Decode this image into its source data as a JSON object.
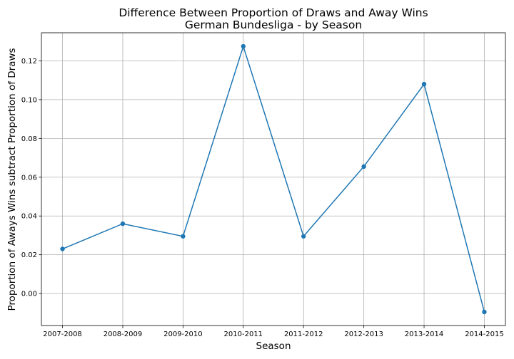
{
  "chart_data": {
    "type": "line",
    "title": "Difference Between Proportion of Draws and Away Wins",
    "subtitle": "German Bundesliga - by Season",
    "xlabel": "Season",
    "ylabel": "Proportion of Aways Wins subtract Proportion of Draws",
    "categories": [
      "2007-2008",
      "2008-2009",
      "2009-2010",
      "2010-2011",
      "2011-2012",
      "2012-2013",
      "2013-2014",
      "2014-2015"
    ],
    "series": [
      {
        "values": [
          0.023,
          0.036,
          0.0295,
          0.1275,
          0.0295,
          0.0655,
          0.108,
          -0.0095
        ],
        "color": "#1f77b4"
      }
    ],
    "yticks": [
      0.0,
      0.02,
      0.04,
      0.06,
      0.08,
      0.1,
      0.12
    ],
    "ytick_labels": [
      "0.00",
      "0.02",
      "0.04",
      "0.06",
      "0.08",
      "0.10",
      "0.12"
    ],
    "ylim": [
      -0.0165,
      0.1345
    ],
    "grid": true,
    "markers": true
  }
}
